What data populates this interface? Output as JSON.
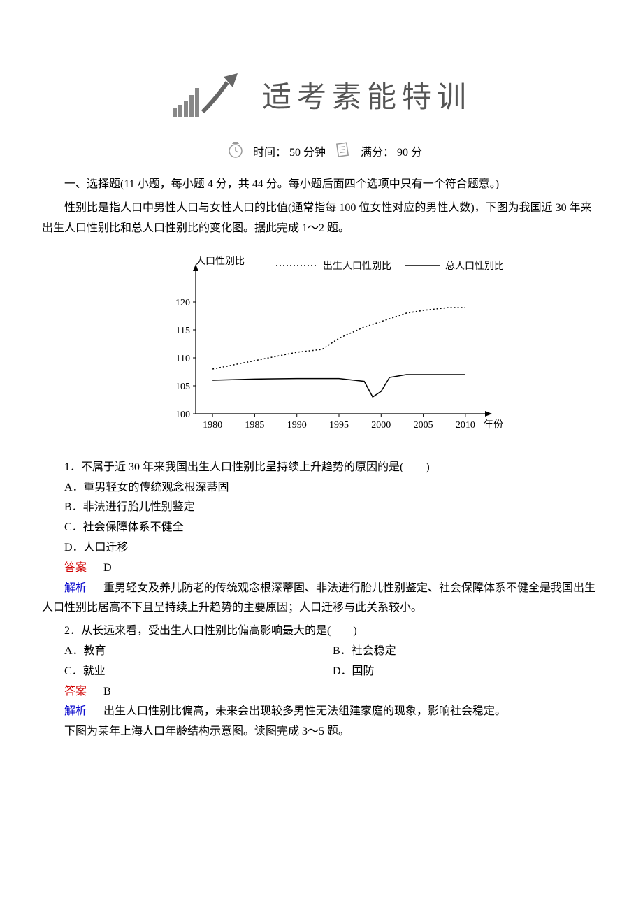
{
  "banner": {
    "title": "适考素能特训",
    "title_fontsize": 42,
    "title_color": "#555555"
  },
  "timing": {
    "time_label": "时间：",
    "time_value": "50 分钟",
    "score_label": "满分：",
    "score_value": "90 分"
  },
  "section_one": {
    "heading": "一、选择题(11 小题，每小题 4 分，共 44 分。每小题后面四个选项中只有一个符合题意。)",
    "intro": "性别比是指人口中男性人口与女性人口的比值(通常指每 100 位女性对应的男性人数)，下图为我国近 30 年来出生人口性别比和总人口性别比的变化图。据此完成 1～2 题。"
  },
  "chart": {
    "type": "line",
    "y_axis_label": "人口性别比",
    "x_axis_label": "年份",
    "legend": {
      "series1": "出生人口性别比",
      "series2": "总人口性别比",
      "series1_style": "dashed",
      "series2_style": "solid"
    },
    "xticks": [
      1980,
      1985,
      1990,
      1995,
      2000,
      2005,
      2010
    ],
    "yticks": [
      100,
      105,
      110,
      115,
      120
    ],
    "ylim": [
      100,
      125
    ],
    "xlim": [
      1978,
      2012
    ],
    "series1_data": {
      "x": [
        1980,
        1985,
        1990,
        1993,
        1995,
        1998,
        2000,
        2003,
        2005,
        2008,
        2010
      ],
      "y": [
        108,
        109.5,
        111,
        111.5,
        113.5,
        115.5,
        116.5,
        118,
        118.5,
        119,
        119
      ]
    },
    "series2_data": {
      "x": [
        1980,
        1985,
        1990,
        1995,
        1998,
        1999,
        2000,
        2001,
        2003,
        2005,
        2010
      ],
      "y": [
        106,
        106.2,
        106.3,
        106.3,
        105.8,
        103,
        104,
        106.5,
        107,
        107,
        107
      ]
    },
    "line_color": "#000000",
    "line_width": 1.5,
    "background_color": "#ffffff",
    "font_size": 14
  },
  "q1": {
    "stem": "1．不属于近 30 年来我国出生人口性别比呈持续上升趋势的原因的是(　　)",
    "optA": "A．重男轻女的传统观念根深蒂固",
    "optB": "B．非法进行胎儿性别鉴定",
    "optC": "C．社会保障体系不健全",
    "optD": "D．人口迁移",
    "answer_label": "答案",
    "answer_value": "D",
    "analysis_label": "解析",
    "analysis_text": "重男轻女及养儿防老的传统观念根深蒂固、非法进行胎儿性别鉴定、社会保障体系不健全是我国出生人口性别比居高不下且呈持续上升趋势的主要原因；人口迁移与此关系较小。"
  },
  "q2": {
    "stem": "2．从长远来看，受出生人口性别比偏高影响最大的是(　　)",
    "optA": "A．教育",
    "optB": "B．社会稳定",
    "optC": "C．就业",
    "optD": "D．国防",
    "answer_label": "答案",
    "answer_value": "B",
    "analysis_label": "解析",
    "analysis_text": "出生人口性别比偏高，未来会出现较多男性无法组建家庭的现象，影响社会稳定。"
  },
  "next_intro": "下图为某年上海人口年龄结构示意图。读图完成 3～5 题。"
}
